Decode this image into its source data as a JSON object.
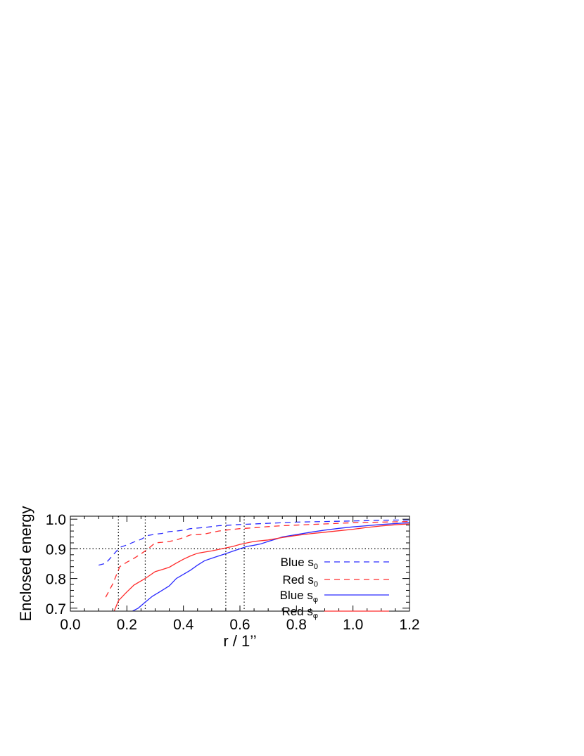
{
  "chart_data": {
    "type": "line",
    "title": "",
    "xlabel": "r / 1’’",
    "ylabel": "Enclosed energy",
    "xlim": [
      0.0,
      1.2
    ],
    "ylim": [
      0.69,
      1.01
    ],
    "x_ticks": [
      0.0,
      0.2,
      0.4,
      0.6,
      0.8,
      1.0,
      1.2
    ],
    "x_tick_labels": [
      "0.0",
      "0.2",
      "0.4",
      "0.6",
      "0.8",
      "1.0",
      "1.2"
    ],
    "y_ticks": [
      0.7,
      0.8,
      0.9,
      1.0
    ],
    "y_tick_labels": [
      "0.7",
      "0.8",
      "0.9",
      "1.0"
    ],
    "grid": false,
    "legend_position": "right",
    "reference_lines": {
      "horizontal": [
        0.9
      ],
      "vertical": [
        0.17,
        0.265,
        0.55,
        0.615
      ],
      "style": "dotted"
    },
    "series": [
      {
        "name": "Blue s",
        "subscript": "0",
        "color": "#2a2aff",
        "style": "dashed",
        "x": [
          0.1,
          0.125,
          0.15,
          0.175,
          0.2,
          0.225,
          0.25,
          0.275,
          0.3,
          0.325,
          0.35,
          0.375,
          0.4,
          0.425,
          0.45,
          0.475,
          0.5,
          0.525,
          0.55,
          0.6,
          0.65,
          0.7,
          0.75,
          0.8,
          0.85,
          0.9,
          0.95,
          1.0,
          1.05,
          1.1,
          1.15,
          1.2
        ],
        "y": [
          0.845,
          0.851,
          0.878,
          0.905,
          0.913,
          0.923,
          0.932,
          0.945,
          0.949,
          0.952,
          0.958,
          0.96,
          0.963,
          0.968,
          0.97,
          0.972,
          0.975,
          0.978,
          0.979,
          0.982,
          0.984,
          0.986,
          0.988,
          0.99,
          0.991,
          0.992,
          0.993,
          0.994,
          0.995,
          0.996,
          0.997,
          0.997
        ]
      },
      {
        "name": "Red s",
        "subscript": "0",
        "color": "#ff2a2a",
        "style": "dashed",
        "x": [
          0.125,
          0.15,
          0.175,
          0.2,
          0.225,
          0.25,
          0.275,
          0.3,
          0.325,
          0.35,
          0.375,
          0.4,
          0.425,
          0.45,
          0.475,
          0.5,
          0.525,
          0.55,
          0.6,
          0.65,
          0.7,
          0.75,
          0.8,
          0.85,
          0.9,
          0.95,
          1.0,
          1.05,
          1.1,
          1.15,
          1.2
        ],
        "y": [
          0.737,
          0.782,
          0.84,
          0.855,
          0.868,
          0.883,
          0.9,
          0.92,
          0.922,
          0.925,
          0.93,
          0.938,
          0.947,
          0.948,
          0.95,
          0.955,
          0.96,
          0.963,
          0.968,
          0.971,
          0.975,
          0.978,
          0.98,
          0.982,
          0.984,
          0.986,
          0.988,
          0.989,
          0.99,
          0.991,
          0.992
        ]
      },
      {
        "name": "Blue s",
        "subscript": "φ",
        "color": "#2a2aff",
        "style": "solid",
        "x": [
          0.22,
          0.24,
          0.265,
          0.29,
          0.32,
          0.35,
          0.375,
          0.4,
          0.425,
          0.45,
          0.475,
          0.5,
          0.525,
          0.55,
          0.575,
          0.6,
          0.625,
          0.65,
          0.675,
          0.7,
          0.725,
          0.75,
          0.8,
          0.85,
          0.9,
          0.95,
          1.0,
          1.05,
          1.1,
          1.15,
          1.2
        ],
        "y": [
          0.69,
          0.7,
          0.72,
          0.74,
          0.757,
          0.775,
          0.8,
          0.814,
          0.828,
          0.845,
          0.86,
          0.868,
          0.876,
          0.884,
          0.892,
          0.9,
          0.908,
          0.912,
          0.917,
          0.925,
          0.932,
          0.94,
          0.948,
          0.956,
          0.963,
          0.969,
          0.974,
          0.978,
          0.982,
          0.985,
          0.988
        ]
      },
      {
        "name": "Red s",
        "subscript": "φ",
        "color": "#ff2a2a",
        "style": "solid",
        "x": [
          0.155,
          0.17,
          0.195,
          0.225,
          0.265,
          0.3,
          0.325,
          0.35,
          0.375,
          0.4,
          0.425,
          0.45,
          0.475,
          0.5,
          0.525,
          0.55,
          0.575,
          0.6,
          0.625,
          0.65,
          0.7,
          0.75,
          0.8,
          0.85,
          0.9,
          0.95,
          1.0,
          1.05,
          1.1,
          1.15,
          1.2
        ],
        "y": [
          0.69,
          0.725,
          0.75,
          0.778,
          0.8,
          0.823,
          0.83,
          0.838,
          0.852,
          0.865,
          0.876,
          0.885,
          0.889,
          0.893,
          0.898,
          0.903,
          0.908,
          0.915,
          0.92,
          0.925,
          0.93,
          0.938,
          0.945,
          0.951,
          0.956,
          0.961,
          0.966,
          0.972,
          0.977,
          0.981,
          0.984
        ]
      }
    ]
  }
}
